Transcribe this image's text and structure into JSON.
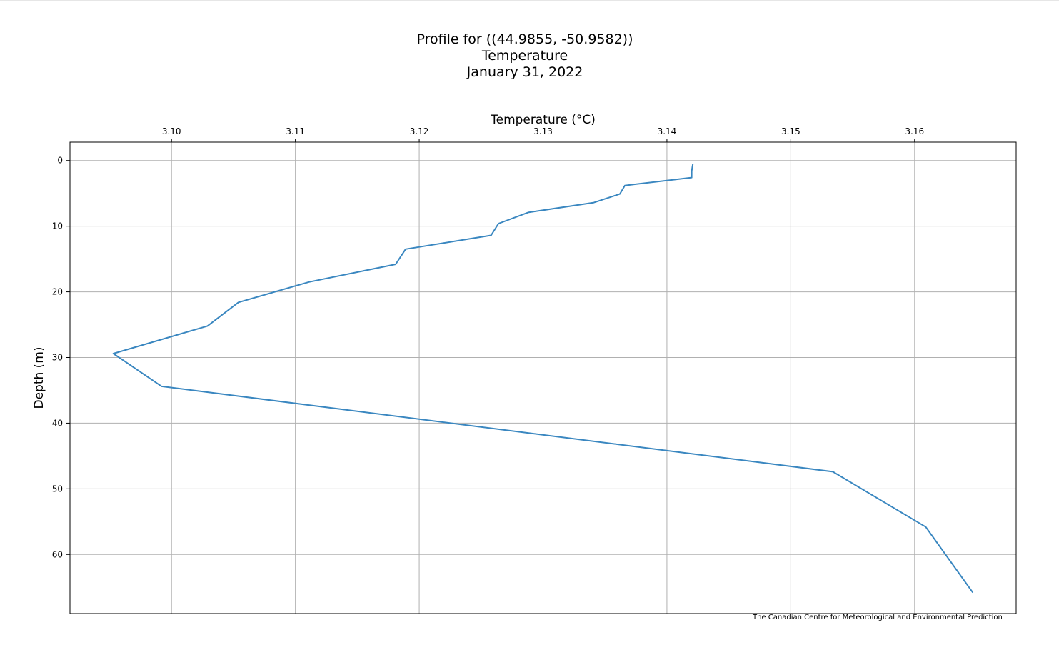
{
  "chart_data": {
    "type": "line",
    "title": [
      "Profile for ((44.9855, -50.9582))",
      "Temperature",
      "January 31, 2022"
    ],
    "xlabel": "Temperature (°C)",
    "ylabel": "Depth (m)",
    "x_axis_position": "top",
    "y_axis_inverted": true,
    "xlim": [
      3.0918,
      3.1682
    ],
    "ylim": [
      69.0,
      -2.8
    ],
    "x_ticks": [
      3.1,
      3.11,
      3.12,
      3.13,
      3.14,
      3.15,
      3.16
    ],
    "x_tick_labels": [
      "3.10",
      "3.11",
      "3.12",
      "3.13",
      "3.14",
      "3.15",
      "3.16"
    ],
    "y_ticks": [
      0,
      10,
      20,
      30,
      40,
      50,
      60
    ],
    "y_tick_labels": [
      "0",
      "10",
      "20",
      "30",
      "40",
      "50",
      "60"
    ],
    "grid": true,
    "series": [
      {
        "color": "#3a87c0",
        "points": [
          {
            "temperature": 3.1421,
            "depth": 0.5
          },
          {
            "temperature": 3.142,
            "depth": 1.6
          },
          {
            "temperature": 3.142,
            "depth": 2.6
          },
          {
            "temperature": 3.1366,
            "depth": 3.8
          },
          {
            "temperature": 3.1362,
            "depth": 5.1
          },
          {
            "temperature": 3.1341,
            "depth": 6.4
          },
          {
            "temperature": 3.1288,
            "depth": 7.9
          },
          {
            "temperature": 3.1264,
            "depth": 9.6
          },
          {
            "temperature": 3.1258,
            "depth": 11.4
          },
          {
            "temperature": 3.1189,
            "depth": 13.5
          },
          {
            "temperature": 3.1181,
            "depth": 15.8
          },
          {
            "temperature": 3.1111,
            "depth": 18.5
          },
          {
            "temperature": 3.1054,
            "depth": 21.6
          },
          {
            "temperature": 3.1029,
            "depth": 25.2
          },
          {
            "temperature": 3.0953,
            "depth": 29.4
          },
          {
            "temperature": 3.0992,
            "depth": 34.4
          },
          {
            "temperature": 3.1534,
            "depth": 47.4
          },
          {
            "temperature": 3.1609,
            "depth": 55.8
          },
          {
            "temperature": 3.1647,
            "depth": 65.8
          }
        ]
      }
    ]
  },
  "credit": "The Canadian Centre for Meteorological and Environmental Prediction"
}
